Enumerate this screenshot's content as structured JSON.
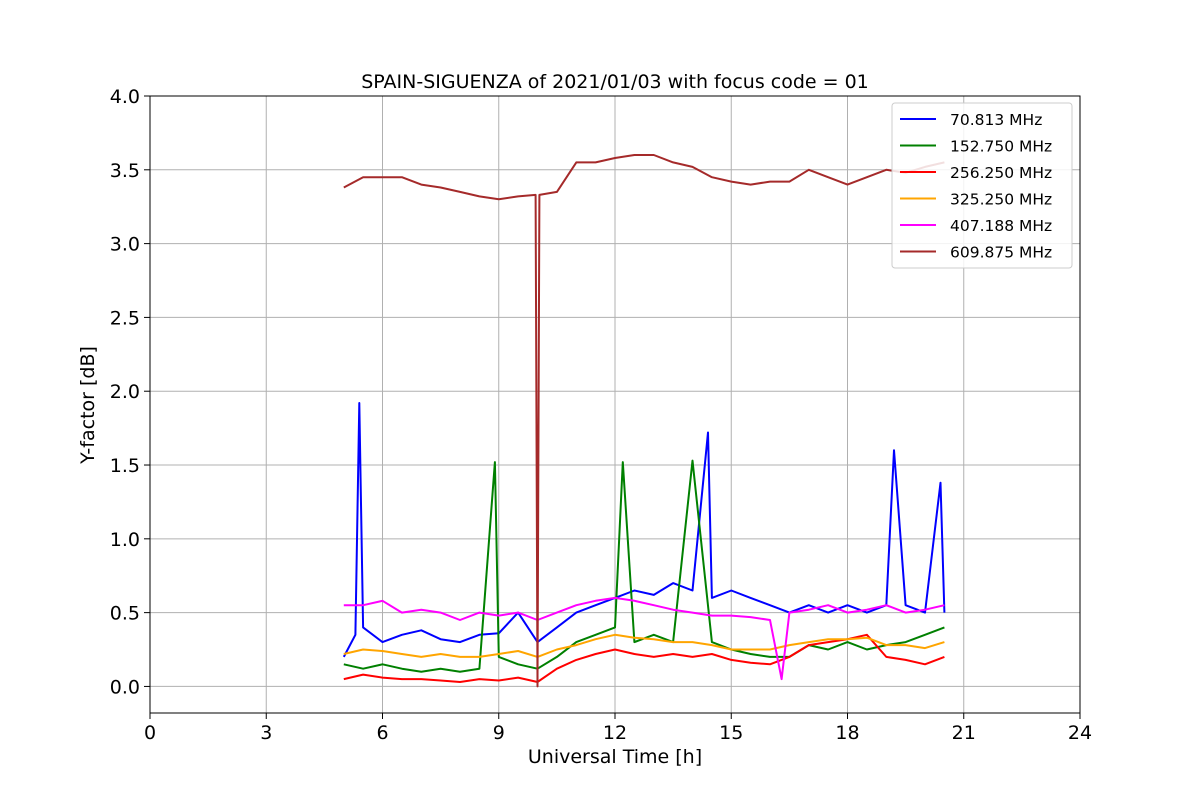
{
  "chart_data": {
    "type": "line",
    "title": "SPAIN-SIGUENZA of 2021/01/03 with focus code = 01",
    "xlabel": "Universal Time [h]",
    "ylabel": "Y-factor [dB]",
    "xlim": [
      0,
      24
    ],
    "ylim": [
      -0.18,
      4.0
    ],
    "xticks": [
      0,
      3,
      6,
      9,
      12,
      15,
      18,
      21,
      24
    ],
    "xtick_labels": [
      "0",
      "3",
      "6",
      "9",
      "12",
      "15",
      "18",
      "21",
      "24"
    ],
    "yticks": [
      0.0,
      0.5,
      1.0,
      1.5,
      2.0,
      2.5,
      3.0,
      3.5,
      4.0
    ],
    "ytick_labels": [
      "0.0",
      "0.5",
      "1.0",
      "1.5",
      "2.0",
      "2.5",
      "3.0",
      "3.5",
      "4.0"
    ],
    "grid": true,
    "legend_position": "top-right",
    "series": [
      {
        "name": "  70.813 MHz",
        "color": "#0000ff",
        "x": [
          5.0,
          5.3,
          5.4,
          5.5,
          6.0,
          6.5,
          7.0,
          7.5,
          8.0,
          8.5,
          9.0,
          9.5,
          10.0,
          10.5,
          11.0,
          11.5,
          12.0,
          12.5,
          13.0,
          13.5,
          14.0,
          14.4,
          14.5,
          15.0,
          15.5,
          16.0,
          16.5,
          17.0,
          17.5,
          18.0,
          18.5,
          19.0,
          19.2,
          19.5,
          20.0,
          20.4,
          20.5
        ],
        "y": [
          0.2,
          0.35,
          1.92,
          0.4,
          0.3,
          0.35,
          0.38,
          0.32,
          0.3,
          0.35,
          0.36,
          0.5,
          0.3,
          0.4,
          0.5,
          0.55,
          0.6,
          0.65,
          0.62,
          0.7,
          0.65,
          1.72,
          0.6,
          0.65,
          0.6,
          0.55,
          0.5,
          0.55,
          0.5,
          0.55,
          0.5,
          0.55,
          1.6,
          0.55,
          0.5,
          1.38,
          0.5
        ]
      },
      {
        "name": "152.750 MHz",
        "color": "#008000",
        "x": [
          5.0,
          5.5,
          6.0,
          6.5,
          7.0,
          7.5,
          8.0,
          8.5,
          8.9,
          9.0,
          9.5,
          10.0,
          10.5,
          11.0,
          11.5,
          12.0,
          12.2,
          12.5,
          13.0,
          13.5,
          14.0,
          14.5,
          15.0,
          15.5,
          16.0,
          16.5,
          17.0,
          17.5,
          18.0,
          18.5,
          19.0,
          19.5,
          20.0,
          20.5
        ],
        "y": [
          0.15,
          0.12,
          0.15,
          0.12,
          0.1,
          0.12,
          0.1,
          0.12,
          1.52,
          0.2,
          0.15,
          0.12,
          0.2,
          0.3,
          0.35,
          0.4,
          1.52,
          0.3,
          0.35,
          0.3,
          1.53,
          0.3,
          0.25,
          0.22,
          0.2,
          0.2,
          0.28,
          0.25,
          0.3,
          0.25,
          0.28,
          0.3,
          0.35,
          0.4
        ]
      },
      {
        "name": "256.250 MHz",
        "color": "#ff0000",
        "x": [
          5.0,
          5.5,
          6.0,
          6.5,
          7.0,
          7.5,
          8.0,
          8.5,
          9.0,
          9.5,
          10.0,
          10.5,
          11.0,
          11.5,
          12.0,
          12.5,
          13.0,
          13.5,
          14.0,
          14.5,
          15.0,
          15.5,
          16.0,
          16.5,
          17.0,
          17.5,
          18.0,
          18.5,
          19.0,
          19.5,
          20.0,
          20.5
        ],
        "y": [
          0.05,
          0.08,
          0.06,
          0.05,
          0.05,
          0.04,
          0.03,
          0.05,
          0.04,
          0.06,
          0.03,
          0.12,
          0.18,
          0.22,
          0.25,
          0.22,
          0.2,
          0.22,
          0.2,
          0.22,
          0.18,
          0.16,
          0.15,
          0.2,
          0.28,
          0.3,
          0.32,
          0.35,
          0.2,
          0.18,
          0.15,
          0.2
        ]
      },
      {
        "name": "325.250 MHz",
        "color": "#ffa500",
        "x": [
          5.0,
          5.5,
          6.0,
          6.5,
          7.0,
          7.5,
          8.0,
          8.5,
          9.0,
          9.5,
          10.0,
          10.5,
          11.0,
          11.5,
          12.0,
          12.5,
          13.0,
          13.5,
          14.0,
          14.5,
          15.0,
          15.5,
          16.0,
          16.5,
          17.0,
          17.5,
          18.0,
          18.5,
          19.0,
          19.5,
          20.0,
          20.5
        ],
        "y": [
          0.22,
          0.25,
          0.24,
          0.22,
          0.2,
          0.22,
          0.2,
          0.2,
          0.22,
          0.24,
          0.2,
          0.25,
          0.28,
          0.32,
          0.35,
          0.33,
          0.32,
          0.3,
          0.3,
          0.28,
          0.25,
          0.25,
          0.25,
          0.28,
          0.3,
          0.32,
          0.32,
          0.33,
          0.28,
          0.28,
          0.26,
          0.3
        ]
      },
      {
        "name": "407.188 MHz",
        "color": "#ff00ff",
        "x": [
          5.0,
          5.5,
          6.0,
          6.5,
          7.0,
          7.5,
          8.0,
          8.5,
          9.0,
          9.5,
          10.0,
          10.5,
          11.0,
          11.5,
          12.0,
          12.5,
          13.0,
          13.5,
          14.0,
          14.5,
          15.0,
          15.5,
          16.0,
          16.3,
          16.5,
          17.0,
          17.5,
          18.0,
          18.5,
          19.0,
          19.5,
          20.0,
          20.5
        ],
        "y": [
          0.55,
          0.55,
          0.58,
          0.5,
          0.52,
          0.5,
          0.45,
          0.5,
          0.48,
          0.5,
          0.45,
          0.5,
          0.55,
          0.58,
          0.6,
          0.58,
          0.55,
          0.52,
          0.5,
          0.48,
          0.48,
          0.47,
          0.45,
          0.05,
          0.5,
          0.52,
          0.55,
          0.5,
          0.52,
          0.55,
          0.5,
          0.52,
          0.55
        ]
      },
      {
        "name": "609.875 MHz",
        "color": "#a52a2a",
        "x": [
          5.0,
          5.5,
          6.0,
          6.5,
          7.0,
          7.5,
          8.0,
          8.5,
          9.0,
          9.5,
          9.95,
          10.0,
          10.05,
          10.5,
          11.0,
          11.5,
          12.0,
          12.5,
          13.0,
          13.5,
          14.0,
          14.5,
          15.0,
          15.5,
          16.0,
          16.5,
          17.0,
          17.5,
          18.0,
          18.5,
          19.0,
          19.5,
          20.0,
          20.5
        ],
        "y": [
          3.38,
          3.45,
          3.45,
          3.45,
          3.4,
          3.38,
          3.35,
          3.32,
          3.3,
          3.32,
          3.33,
          0.0,
          3.33,
          3.35,
          3.55,
          3.55,
          3.58,
          3.6,
          3.6,
          3.55,
          3.52,
          3.45,
          3.42,
          3.4,
          3.42,
          3.42,
          3.5,
          3.45,
          3.4,
          3.45,
          3.5,
          3.48,
          3.52,
          3.55
        ]
      }
    ]
  }
}
